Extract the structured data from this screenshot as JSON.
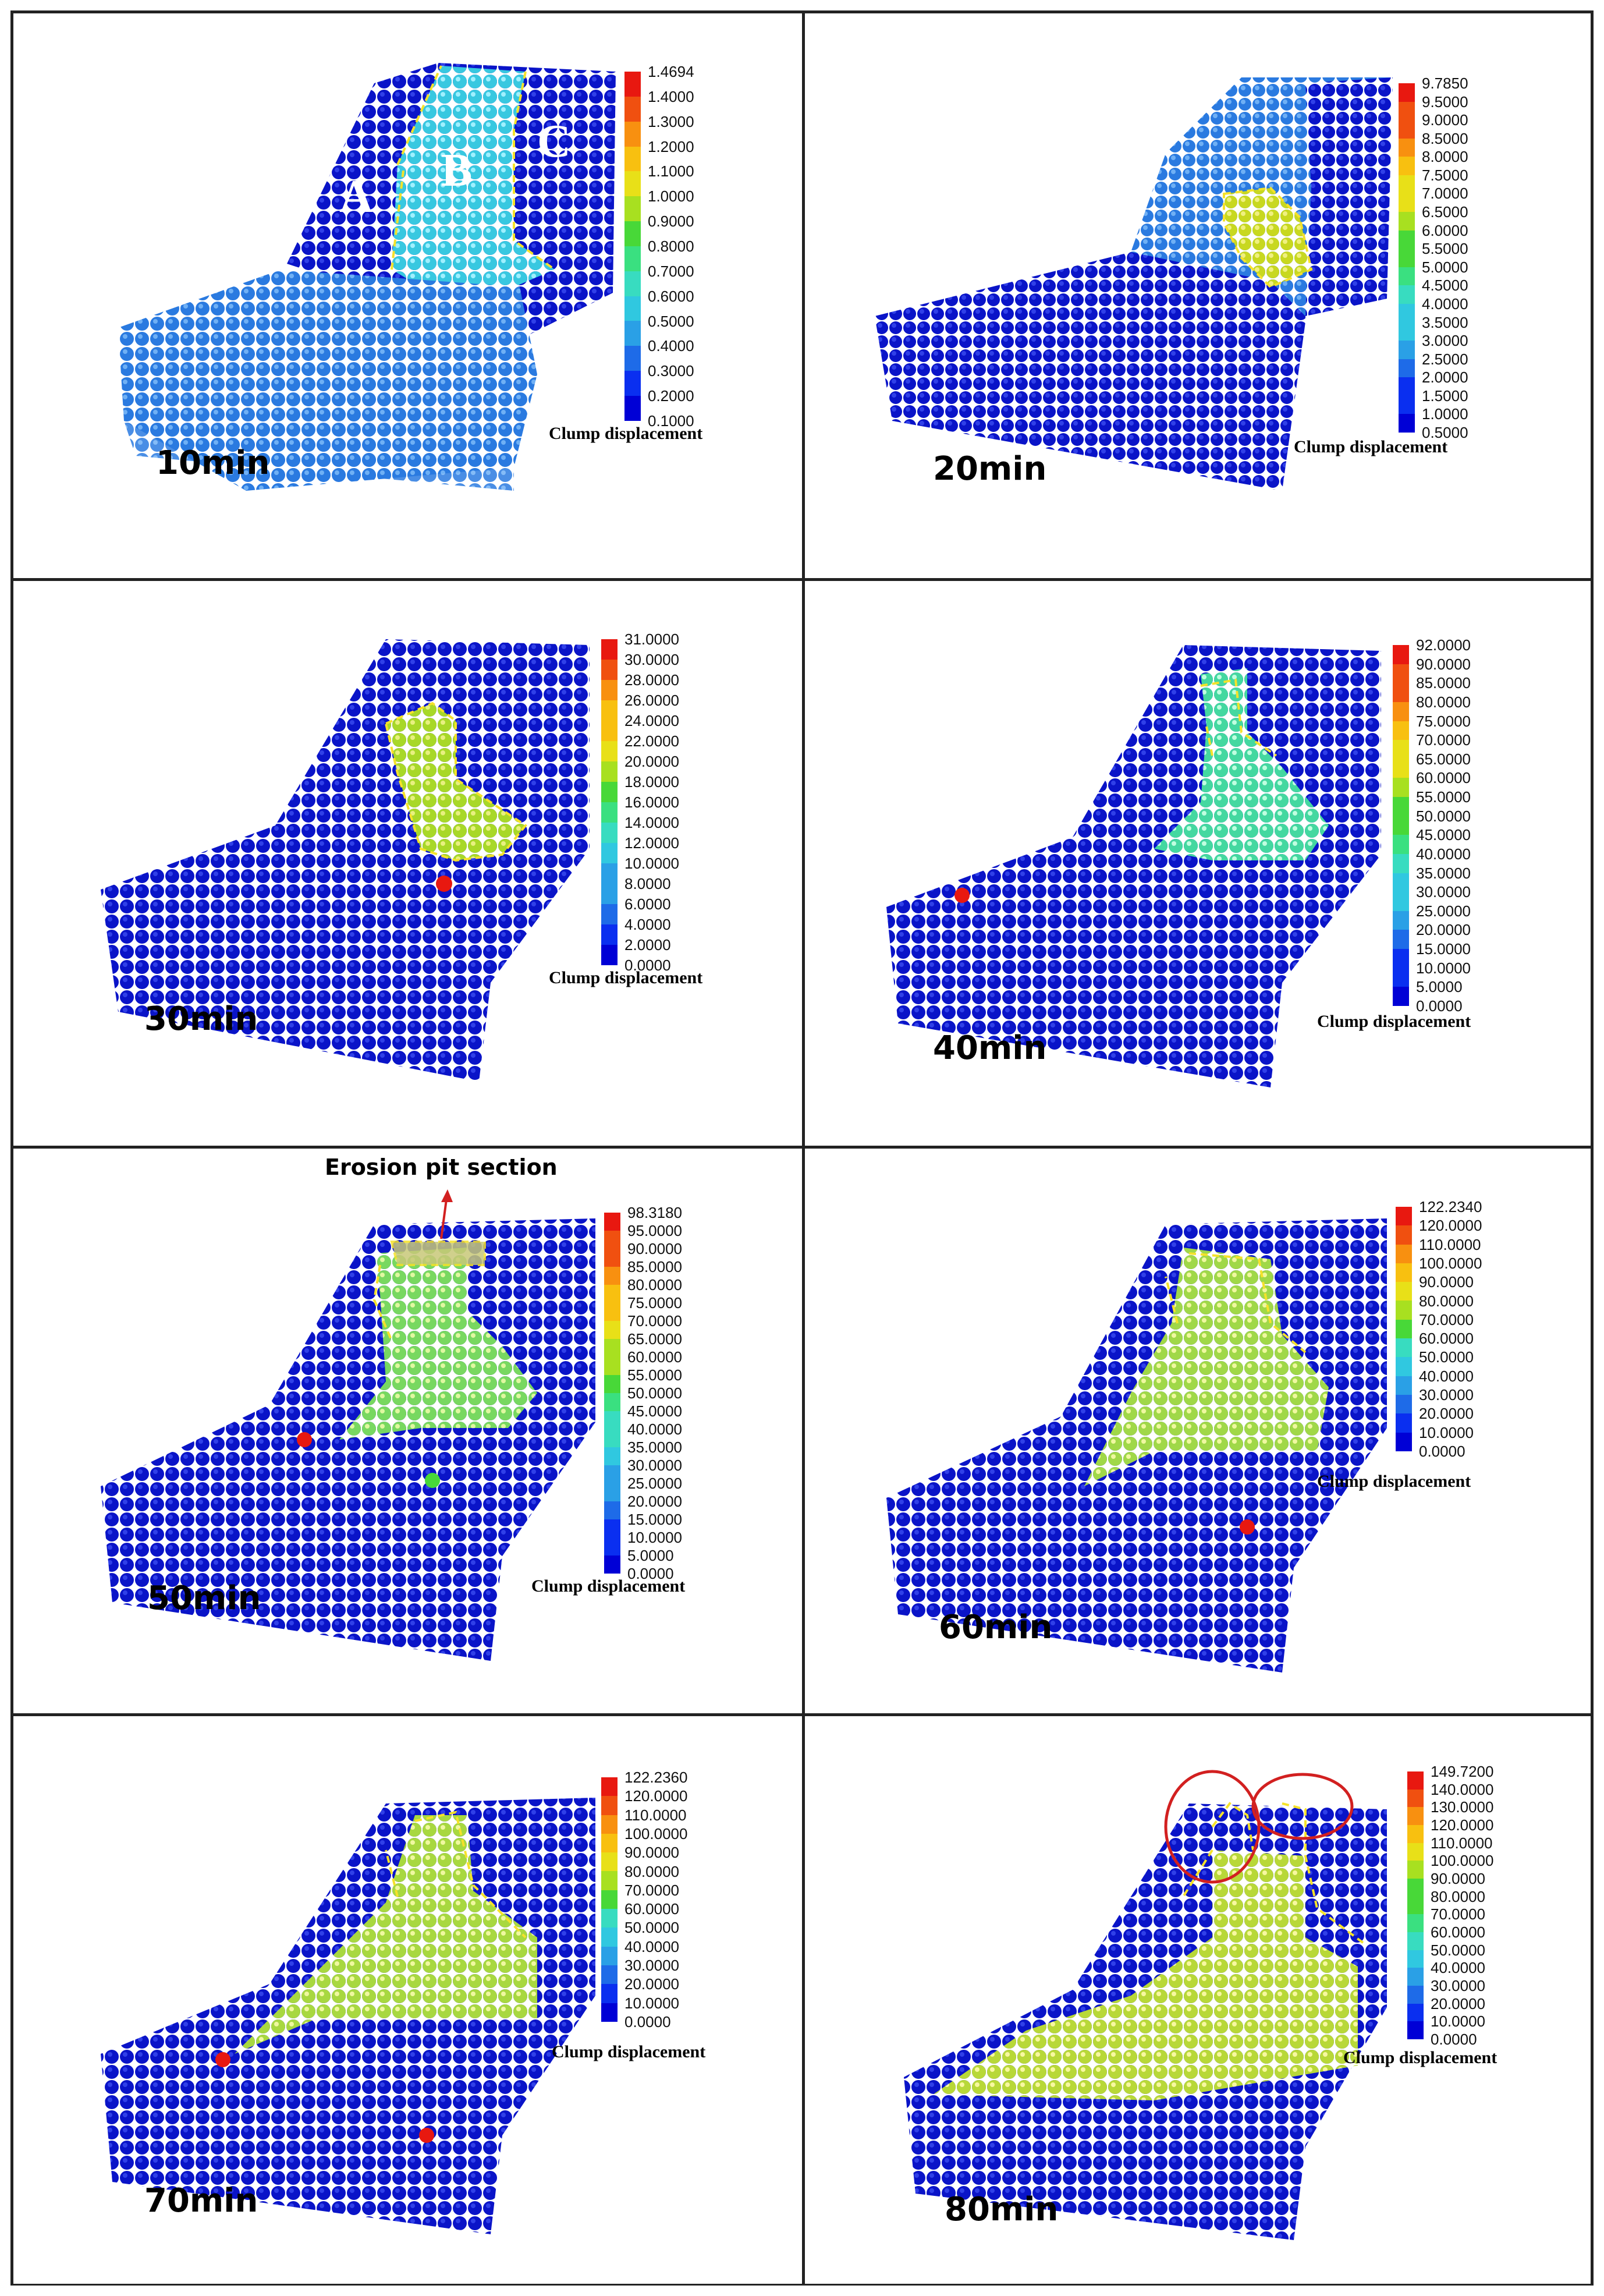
{
  "legend_title": "Clump displacement",
  "colors": {
    "ramp": [
      "#0000d6",
      "#0a2ff0",
      "#1e6be8",
      "#2aa0e6",
      "#30c8e0",
      "#38dcc0",
      "#3ae080",
      "#48d838",
      "#a8e020",
      "#e8e018",
      "#f8c010",
      "#f89010",
      "#f05010",
      "#e81810"
    ],
    "background_particles": "#0a14c8",
    "outline": "#f5e22a",
    "circle": "#d22020",
    "arrow": "#d22020"
  },
  "panels": [
    {
      "label": "10min",
      "legend": [
        "1.4694",
        "1.4000",
        "1.3000",
        "1.2000",
        "1.1000",
        "1.0000",
        "0.9000",
        "0.8000",
        "0.7000",
        "0.6000",
        "0.5000",
        "0.4000",
        "0.3000",
        "0.2000",
        "0.1000"
      ],
      "zones": [
        "A",
        "B",
        "C"
      ]
    },
    {
      "label": "20min",
      "legend": [
        "9.7850",
        "9.5000",
        "9.0000",
        "8.5000",
        "8.0000",
        "7.5000",
        "7.0000",
        "6.5000",
        "6.0000",
        "5.5000",
        "5.0000",
        "4.5000",
        "4.0000",
        "3.5000",
        "3.0000",
        "2.5000",
        "2.0000",
        "1.5000",
        "1.0000",
        "0.5000"
      ]
    },
    {
      "label": "30min",
      "legend": [
        "31.0000",
        "30.0000",
        "28.0000",
        "26.0000",
        "24.0000",
        "22.0000",
        "20.0000",
        "18.0000",
        "16.0000",
        "14.0000",
        "12.0000",
        "10.0000",
        "8.0000",
        "6.0000",
        "4.0000",
        "2.0000",
        "0.0000"
      ]
    },
    {
      "label": "40min",
      "legend": [
        "92.0000",
        "90.0000",
        "85.0000",
        "80.0000",
        "75.0000",
        "70.0000",
        "65.0000",
        "60.0000",
        "55.0000",
        "50.0000",
        "45.0000",
        "40.0000",
        "35.0000",
        "30.0000",
        "25.0000",
        "20.0000",
        "15.0000",
        "10.0000",
        "5.0000",
        "0.0000"
      ]
    },
    {
      "label": "50min",
      "legend": [
        "98.3180",
        "95.0000",
        "90.0000",
        "85.0000",
        "80.0000",
        "75.0000",
        "70.0000",
        "65.0000",
        "60.0000",
        "55.0000",
        "50.0000",
        "45.0000",
        "40.0000",
        "35.0000",
        "30.0000",
        "25.0000",
        "20.0000",
        "15.0000",
        "10.0000",
        "5.0000",
        "0.0000"
      ],
      "annotation": "Erosion pit section"
    },
    {
      "label": "60min",
      "legend": [
        "122.2340",
        "120.0000",
        "110.0000",
        "100.0000",
        "90.0000",
        "80.0000",
        "70.0000",
        "60.0000",
        "50.0000",
        "40.0000",
        "30.0000",
        "20.0000",
        "10.0000",
        "0.0000"
      ]
    },
    {
      "label": "70min",
      "legend": [
        "122.2360",
        "120.0000",
        "110.0000",
        "100.0000",
        "90.0000",
        "80.0000",
        "70.0000",
        "60.0000",
        "50.0000",
        "40.0000",
        "30.0000",
        "20.0000",
        "10.0000",
        "0.0000"
      ]
    },
    {
      "label": "80min",
      "legend": [
        "149.7200",
        "140.0000",
        "130.0000",
        "120.0000",
        "110.0000",
        "100.0000",
        "90.0000",
        "80.0000",
        "70.0000",
        "60.0000",
        "50.0000",
        "40.0000",
        "30.0000",
        "20.0000",
        "10.0000",
        "0.0000"
      ]
    }
  ]
}
